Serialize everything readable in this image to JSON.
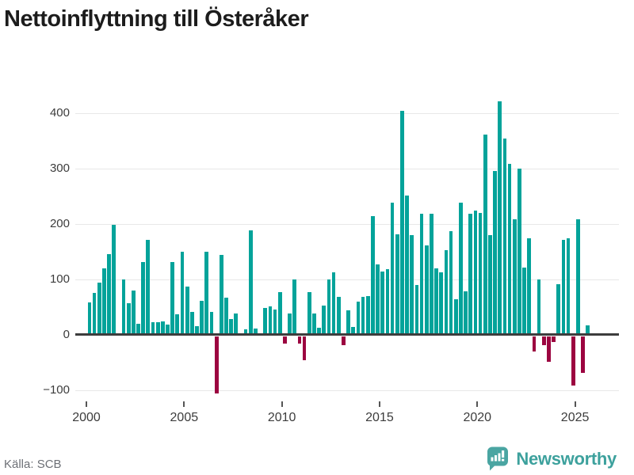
{
  "title": "Nettoinflyttning till Österåker",
  "source": "Källa: SCB",
  "branding": {
    "name": "Newsworthy",
    "icon": "bar-chart-speech-bubble"
  },
  "colors": {
    "positive_bar": "#03a39a",
    "negative_bar": "#9c0440",
    "axis": "#3d3d3d",
    "grid": "#e8e8e8",
    "title_text": "#1c1c1c",
    "tick_text": "#3c3c3c",
    "source_text": "#6d7076",
    "brand_teal": "#3da19d"
  },
  "chart_data": {
    "type": "bar",
    "title": "Nettoinflyttning till Österåker",
    "xlabel": "",
    "ylabel": "",
    "unit": "persons per quarter (net migration)",
    "y_ticks": [
      400,
      300,
      200,
      100,
      0,
      -100
    ],
    "y_tick_labels": [
      "400",
      "300",
      "200",
      "100",
      "0",
      "−100"
    ],
    "ylim": [
      -130,
      440
    ],
    "x_tick_labels": [
      "2000",
      "2005",
      "2010",
      "2015",
      "2020",
      "2025"
    ],
    "grid": "horizontal",
    "legend": "none",
    "frequency": "quarterly",
    "first_period": "2000Q1",
    "last_period": "2025Q3",
    "years": [
      {
        "year": 2000,
        "q": [
          59,
          76,
          94,
          120
        ]
      },
      {
        "year": 2001,
        "q": [
          146,
          199,
          0,
          100
        ]
      },
      {
        "year": 2002,
        "q": [
          57,
          80,
          20,
          131
        ]
      },
      {
        "year": 2003,
        "q": [
          172,
          23,
          23,
          24
        ]
      },
      {
        "year": 2004,
        "q": [
          19,
          131,
          37,
          150
        ]
      },
      {
        "year": 2005,
        "q": [
          87,
          41,
          16,
          61
        ]
      },
      {
        "year": 2006,
        "q": [
          150,
          41,
          -103,
          145
        ]
      },
      {
        "year": 2007,
        "q": [
          67,
          29,
          38,
          0
        ]
      },
      {
        "year": 2008,
        "q": [
          10,
          188,
          12,
          0
        ]
      },
      {
        "year": 2009,
        "q": [
          48,
          52,
          46,
          77
        ]
      },
      {
        "year": 2010,
        "q": [
          -14,
          39,
          100,
          -14
        ]
      },
      {
        "year": 2011,
        "q": [
          -43,
          77,
          39,
          13
        ]
      },
      {
        "year": 2012,
        "q": [
          53,
          100,
          113,
          69
        ]
      },
      {
        "year": 2013,
        "q": [
          -17,
          45,
          15,
          60
        ]
      },
      {
        "year": 2014,
        "q": [
          69,
          70,
          214,
          127
        ]
      },
      {
        "year": 2015,
        "q": [
          114,
          119,
          239,
          181
        ]
      },
      {
        "year": 2016,
        "q": [
          405,
          251,
          180,
          90
        ]
      },
      {
        "year": 2017,
        "q": [
          218,
          161,
          218,
          120
        ]
      },
      {
        "year": 2018,
        "q": [
          113,
          153,
          187,
          65
        ]
      },
      {
        "year": 2019,
        "q": [
          239,
          79,
          218,
          224
        ]
      },
      {
        "year": 2020,
        "q": [
          220,
          361,
          180,
          296
        ]
      },
      {
        "year": 2021,
        "q": [
          422,
          354,
          309,
          208
        ]
      },
      {
        "year": 2022,
        "q": [
          300,
          122,
          174,
          -28
        ]
      },
      {
        "year": 2023,
        "q": [
          100,
          -17,
          -46,
          -11
        ]
      },
      {
        "year": 2024,
        "q": [
          91,
          172,
          175,
          -89
        ]
      },
      {
        "year": 2025,
        "q": [
          208,
          -66,
          17
        ]
      }
    ]
  }
}
